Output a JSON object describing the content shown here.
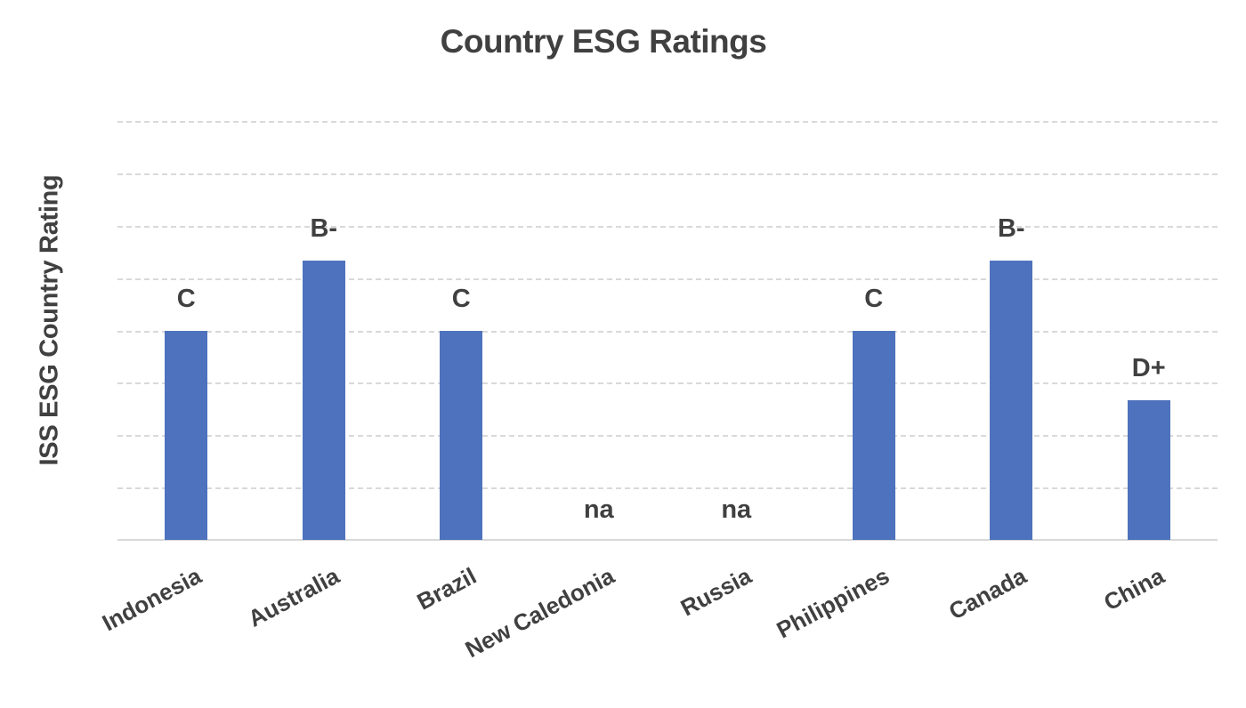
{
  "chart": {
    "title": "Country ESG Ratings",
    "ylabel": "ISS ESG Country Rating",
    "bar_color": "#4e72bd",
    "grid_color": "#d9d9d9",
    "text_color": "#404040"
  },
  "chart_data": {
    "type": "bar",
    "title": "Country ESG Ratings",
    "xlabel": "",
    "ylabel": "ISS ESG Country Rating",
    "categories": [
      "Indonesia",
      "Australia",
      "Brazil",
      "New Caledonia",
      "Russia",
      "Philippines",
      "Canada",
      "China"
    ],
    "values": [
      4,
      5.33,
      4,
      0,
      0,
      4,
      5.33,
      2.67
    ],
    "data_labels": [
      "C",
      "B-",
      "C",
      "na",
      "na",
      "C",
      "B-",
      "D+"
    ],
    "ylim": [
      0,
      8
    ],
    "grid": true,
    "grid_style": "dashed",
    "y_tick_labels_visible": false,
    "legend": null
  }
}
